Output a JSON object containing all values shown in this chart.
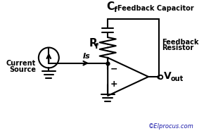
{
  "bg_color": "#ffffff",
  "line_color": "#000000",
  "cf_desc": "Feedback Capacitor",
  "rf_desc1": "Feedback",
  "rf_desc2": "Resistor",
  "is_label": "Is",
  "cs_label1": "Current",
  "cs_label2": "Source",
  "copyright": "©Elprocus.com",
  "figsize": [
    3.0,
    1.96
  ],
  "dpi": 100
}
